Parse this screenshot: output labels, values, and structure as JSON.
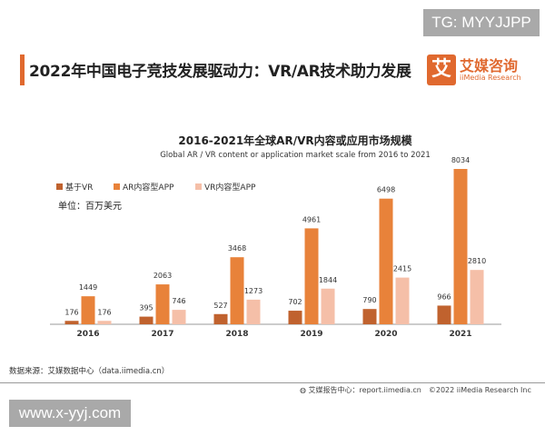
{
  "watermarks": {
    "top": "TG: MYYJJPP",
    "bottom": "www.x-yyj.com"
  },
  "header": {
    "title": "2022年中国电子竞技发展驱动力：VR/AR技术助力发展",
    "logo_glyph": "艾",
    "logo_name": "艾媒咨询",
    "logo_sub": "iiMedia Research"
  },
  "chart_data": {
    "type": "bar",
    "title": "2016-2021年全球AR/VR内容或应用市场规模",
    "subtitle": "Global AR / VR content or application market scale from 2016 to 2021",
    "unit": "单位：百万美元",
    "categories": [
      "2016",
      "2017",
      "2018",
      "2019",
      "2020",
      "2021"
    ],
    "series": [
      {
        "name": "基于VR",
        "color": "#c0622e",
        "values": [
          176,
          395,
          527,
          702,
          790,
          966
        ]
      },
      {
        "name": "AR内容型APP",
        "color": "#e8823a",
        "values": [
          1449,
          2063,
          3468,
          4961,
          6498,
          8034
        ]
      },
      {
        "name": "VR内容型APP",
        "color": "#f5bfa8",
        "values": [
          176,
          746,
          1273,
          1844,
          2415,
          2810
        ]
      }
    ],
    "ylim": [
      0,
      8500
    ],
    "legend": "top-left",
    "grid": false
  },
  "footer": {
    "source": "数据来源：艾媒数据中心（data.iimedia.cn）",
    "credit": "艾媒报告中心：report.iimedia.cn　©2022  iiMedia Research Inc"
  }
}
